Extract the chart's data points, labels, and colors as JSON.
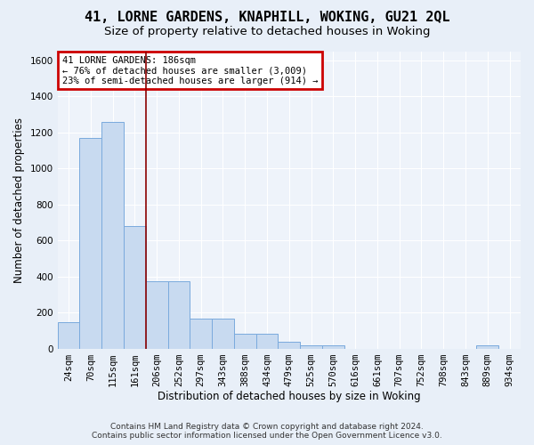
{
  "title_line1": "41, LORNE GARDENS, KNAPHILL, WOKING, GU21 2QL",
  "title_line2": "Size of property relative to detached houses in Woking",
  "xlabel": "Distribution of detached houses by size in Woking",
  "ylabel": "Number of detached properties",
  "footer_line1": "Contains HM Land Registry data © Crown copyright and database right 2024.",
  "footer_line2": "Contains public sector information licensed under the Open Government Licence v3.0.",
  "categories": [
    "24sqm",
    "70sqm",
    "115sqm",
    "161sqm",
    "206sqm",
    "252sqm",
    "297sqm",
    "343sqm",
    "388sqm",
    "434sqm",
    "479sqm",
    "525sqm",
    "570sqm",
    "616sqm",
    "661sqm",
    "707sqm",
    "752sqm",
    "798sqm",
    "843sqm",
    "889sqm",
    "934sqm"
  ],
  "values": [
    148,
    1170,
    1255,
    680,
    375,
    375,
    168,
    168,
    82,
    82,
    35,
    20,
    20,
    0,
    0,
    0,
    0,
    0,
    0,
    20,
    0
  ],
  "bar_color": "#c8daf0",
  "bar_edge_color": "#7aaadd",
  "property_label": "41 LORNE GARDENS: 186sqm",
  "annotation_line1": "← 76% of detached houses are smaller (3,009)",
  "annotation_line2": "23% of semi-detached houses are larger (914) →",
  "vline_position": 3.5,
  "vline_color": "#8b0000",
  "ylim_max": 1650,
  "yticks": [
    0,
    200,
    400,
    600,
    800,
    1000,
    1200,
    1400,
    1600
  ],
  "background_color": "#e8eff8",
  "plot_bg_color": "#eef3fa",
  "grid_color": "#ffffff",
  "annotation_box_edge": "#cc0000",
  "title_fontsize": 11,
  "subtitle_fontsize": 9.5,
  "axis_label_fontsize": 8.5,
  "tick_fontsize": 7.5,
  "footer_fontsize": 6.5
}
